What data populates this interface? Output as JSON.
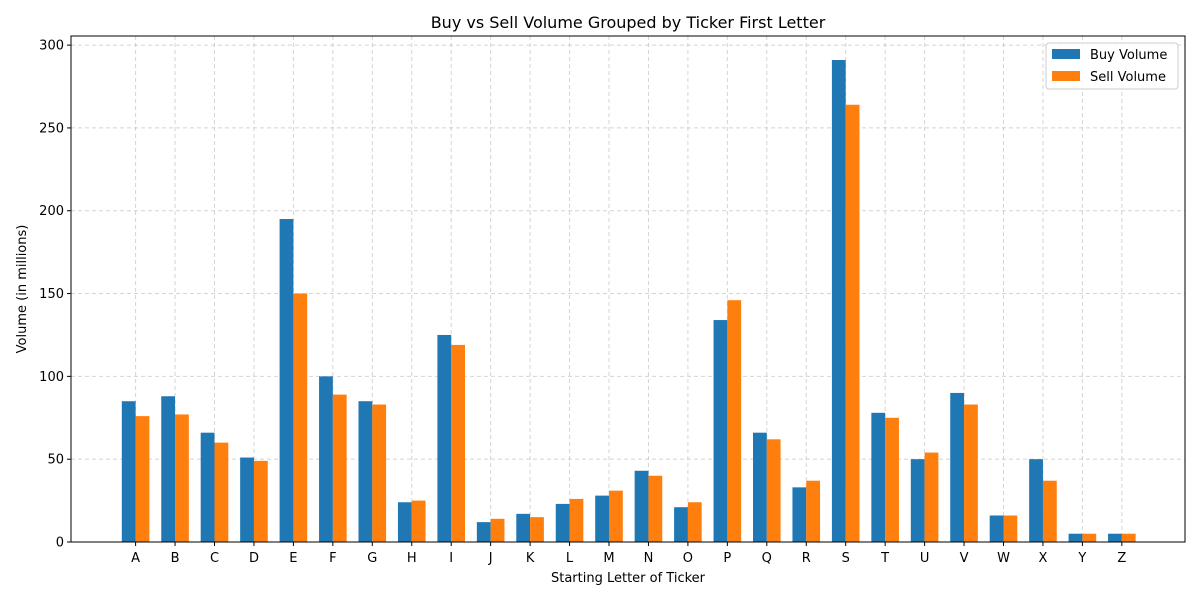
{
  "chart_data": {
    "type": "bar",
    "title": "Buy vs Sell Volume Grouped by Ticker First Letter",
    "xlabel": "Starting Letter of Ticker",
    "ylabel": "Volume (in millions)",
    "categories": [
      "A",
      "B",
      "C",
      "D",
      "E",
      "F",
      "G",
      "H",
      "I",
      "J",
      "K",
      "L",
      "M",
      "N",
      "O",
      "P",
      "Q",
      "R",
      "S",
      "T",
      "U",
      "V",
      "W",
      "X",
      "Y",
      "Z"
    ],
    "series": [
      {
        "name": "Buy Volume",
        "color": "#1f77b4",
        "values": [
          85,
          88,
          66,
          51,
          195,
          100,
          85,
          24,
          125,
          12,
          17,
          23,
          28,
          43,
          21,
          134,
          66,
          33,
          291,
          78,
          50,
          90,
          16,
          50,
          5,
          5
        ]
      },
      {
        "name": "Sell Volume",
        "color": "#ff7f0e",
        "values": [
          76,
          77,
          60,
          49,
          150,
          89,
          83,
          25,
          119,
          14,
          15,
          26,
          31,
          40,
          24,
          146,
          62,
          37,
          264,
          75,
          54,
          83,
          16,
          37,
          5,
          5
        ]
      }
    ],
    "yticks": [
      0,
      50,
      100,
      150,
      200,
      250,
      300
    ],
    "ylim": [
      0,
      305.5
    ],
    "grid": true,
    "legend_position": "top-right"
  }
}
